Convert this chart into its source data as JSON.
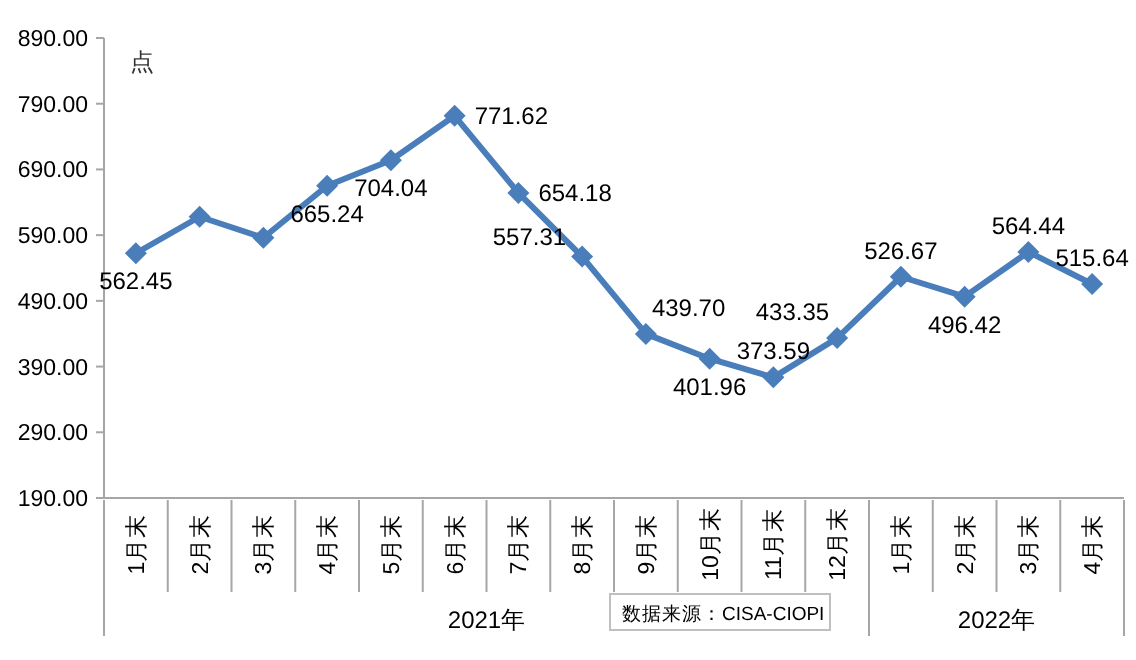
{
  "chart_data": {
    "type": "line",
    "ylabel": "点",
    "categories": [
      "1月末",
      "2月末",
      "3月末",
      "4月末",
      "5月末",
      "6月末",
      "7月末",
      "8月末",
      "9月末",
      "10月末",
      "11月末",
      "12月末",
      "1月末",
      "2月末",
      "3月末",
      "4月末"
    ],
    "series": [
      {
        "color": "#4a7ebb",
        "values": [
          562.45,
          618,
          586,
          665.24,
          704.04,
          771.62,
          654.18,
          557.31,
          439.7,
          401.96,
          373.59,
          433.35,
          526.67,
          496.42,
          564.44,
          515.64
        ],
        "value_labels": [
          "562.45",
          null,
          null,
          "665.24",
          "704.04",
          "771.62",
          "654.18",
          "557.31",
          "439.70",
          "401.96",
          "373.59",
          "433.35",
          "526.67",
          "496.42",
          "564.44",
          "515.64"
        ]
      }
    ],
    "ylim": [
      190,
      890
    ],
    "yticks": [
      {
        "value": 190,
        "label": "190.00"
      },
      {
        "value": 290,
        "label": "290.00"
      },
      {
        "value": 390,
        "label": "390.00"
      },
      {
        "value": 490,
        "label": "490.00"
      },
      {
        "value": 590,
        "label": "590.00"
      },
      {
        "value": 690,
        "label": "690.00"
      },
      {
        "value": 790,
        "label": "790.00"
      },
      {
        "value": 890,
        "label": "890.00"
      }
    ],
    "marker": "diamond",
    "grid": false,
    "annotations": [
      "2021年",
      "2022年",
      "数据来源：CISA-CIOPI"
    ]
  }
}
